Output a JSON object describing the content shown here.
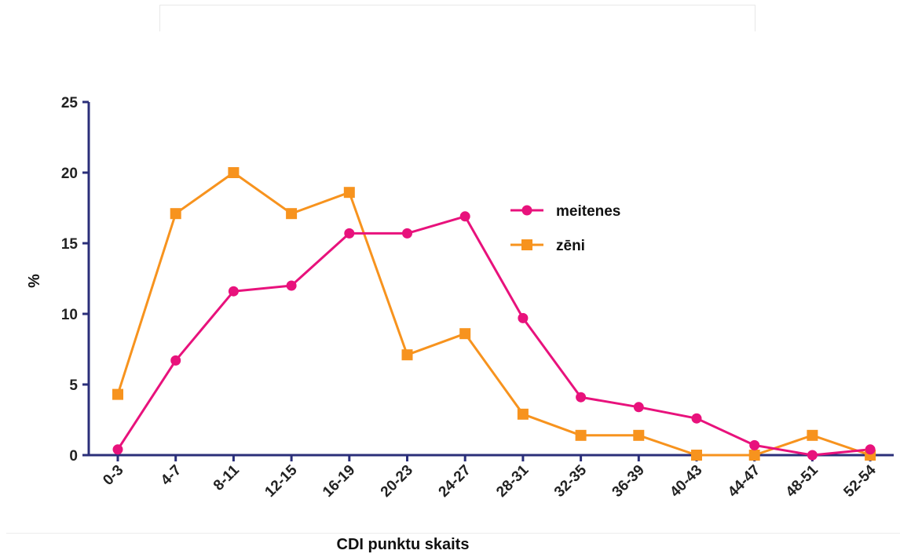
{
  "chart_data": {
    "type": "line",
    "categories": [
      "0-3",
      "4-7",
      "8-11",
      "12-15",
      "16-19",
      "20-23",
      "24-27",
      "28-31",
      "32-35",
      "36-39",
      "40-43",
      "44-47",
      "48-51",
      "52-54"
    ],
    "series": [
      {
        "name": "meitenes",
        "color": "#e8127c",
        "marker": "circle",
        "values": [
          0.4,
          6.7,
          11.6,
          12.0,
          15.7,
          15.7,
          16.9,
          9.7,
          4.1,
          3.4,
          2.6,
          0.7,
          0.0,
          0.4
        ]
      },
      {
        "name": "zēni",
        "color": "#f7931e",
        "marker": "square",
        "values": [
          4.3,
          17.1,
          20.0,
          17.1,
          18.6,
          7.1,
          8.6,
          2.9,
          1.4,
          1.4,
          0.0,
          0.0,
          1.4,
          0.0
        ]
      }
    ],
    "xlabel": "CDI punktu skaits",
    "ylabel": "%",
    "ylim": [
      0,
      25
    ],
    "yticks": [
      "0",
      "5",
      "10",
      "15",
      "20",
      "25"
    ],
    "grid": false,
    "legend": "right-center"
  }
}
